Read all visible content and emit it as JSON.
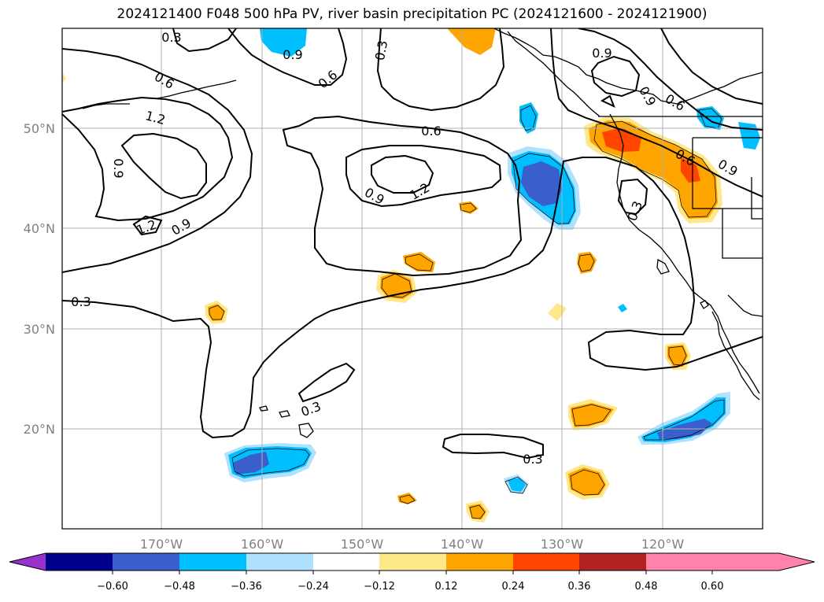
{
  "title": "2024121400 F048 500 hPa PV, river basin precipitation PC (2024121600 - 2024121900)",
  "lat_labels": [
    "50°N",
    "40°N",
    "30°N",
    "20°N"
  ],
  "lon_labels": [
    "170°W",
    "160°W",
    "150°W",
    "140°W",
    "130°W",
    "120°W"
  ],
  "contour_labels": [
    "0.3",
    "0.3",
    "0.3",
    "0.3",
    "0.3",
    "0.3",
    "0.6",
    "0.6",
    "0.6",
    "0.6",
    "0.9",
    "0.9",
    "0.9",
    "0.9",
    "0.9",
    "0.9",
    "1.2",
    "1.2",
    "1.2",
    "0.6",
    "0.9"
  ],
  "colorbar": {
    "ticks": [
      "−0.60",
      "−0.48",
      "−0.36",
      "−0.24",
      "−0.12",
      "0.12",
      "0.24",
      "0.36",
      "0.48",
      "0.60"
    ],
    "colors": [
      "#9932cc",
      "#00008b",
      "#3a5fcd",
      "#00bfff",
      "#b0e2ff",
      "#ffffff",
      "#fee88a",
      "#ffa500",
      "#ff4500",
      "#b22222",
      "#ff82ab"
    ]
  },
  "colors": {
    "land_outline": "#000000",
    "grid": "#b0b0b0",
    "contour": "#000000"
  }
}
